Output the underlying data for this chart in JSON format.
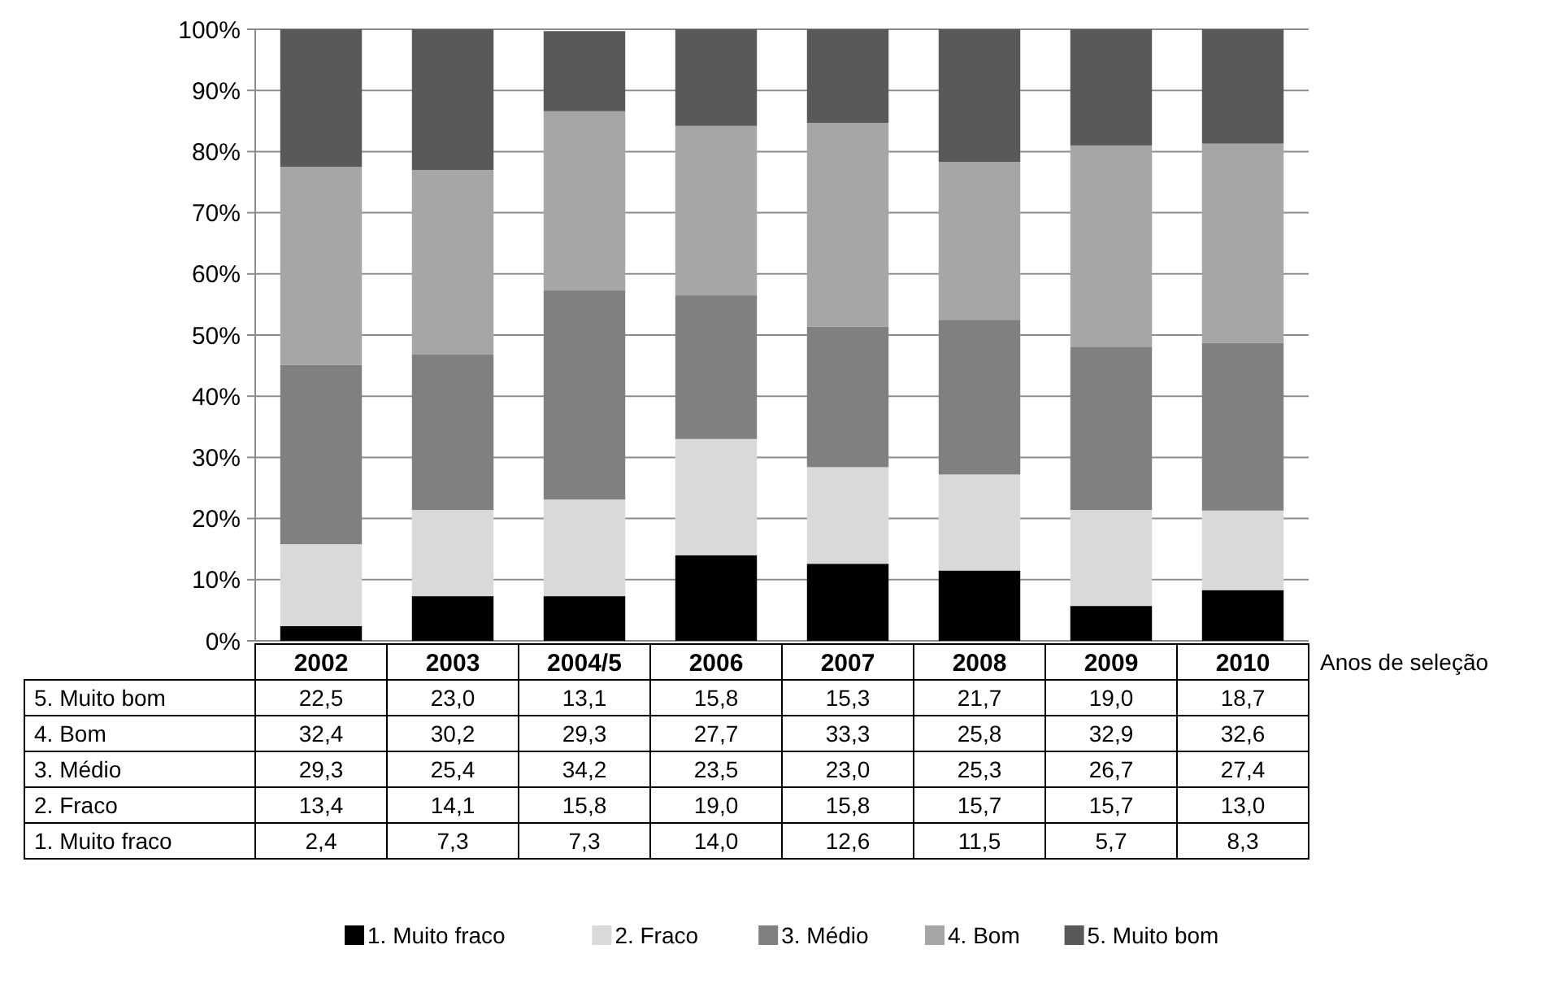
{
  "chart_data": {
    "type": "bar",
    "stacked": true,
    "xlabel": "Anos de seleção",
    "categories": [
      "2002",
      "2003",
      "2004/5",
      "2006",
      "2007",
      "2008",
      "2009",
      "2010"
    ],
    "series": [
      {
        "name": "1. Muito fraco",
        "color": "#000000",
        "values": [
          2.4,
          7.3,
          7.3,
          14.0,
          12.6,
          11.5,
          5.7,
          8.3
        ],
        "value_labels": [
          "2,4",
          "7,3",
          "7,3",
          "14,0",
          "12,6",
          "11,5",
          "5,7",
          "8,3"
        ]
      },
      {
        "name": "2. Fraco",
        "color": "#d9d9d9",
        "values": [
          13.4,
          14.1,
          15.8,
          19.0,
          15.8,
          15.7,
          15.7,
          13.0
        ],
        "value_labels": [
          "13,4",
          "14,1",
          "15,8",
          "19,0",
          "15,8",
          "15,7",
          "15,7",
          "13,0"
        ]
      },
      {
        "name": "3. Médio",
        "color": "#808080",
        "values": [
          29.3,
          25.4,
          34.2,
          23.5,
          23.0,
          25.3,
          26.7,
          27.4
        ],
        "value_labels": [
          "29,3",
          "25,4",
          "34,2",
          "23,5",
          "23,0",
          "25,3",
          "26,7",
          "27,4"
        ]
      },
      {
        "name": "4. Bom",
        "color": "#a6a6a6",
        "values": [
          32.4,
          30.2,
          29.3,
          27.7,
          33.3,
          25.8,
          32.9,
          32.6
        ],
        "value_labels": [
          "32,4",
          "30,2",
          "29,3",
          "27,7",
          "33,3",
          "25,8",
          "32,9",
          "32,6"
        ]
      },
      {
        "name": "5. Muito bom",
        "color": "#595959",
        "values": [
          22.5,
          23.0,
          13.1,
          15.8,
          15.3,
          21.7,
          19.0,
          18.7
        ],
        "value_labels": [
          "22,5",
          "23,0",
          "13,1",
          "15,8",
          "15,3",
          "21,7",
          "19,0",
          "18,7"
        ]
      }
    ],
    "ylim": [
      0,
      100
    ],
    "yticks": [
      {
        "value": 0,
        "label": "0%"
      },
      {
        "value": 10,
        "label": "10%"
      },
      {
        "value": 20,
        "label": "20%"
      },
      {
        "value": 30,
        "label": "30%"
      },
      {
        "value": 40,
        "label": "40%"
      },
      {
        "value": 50,
        "label": "50%"
      },
      {
        "value": 60,
        "label": "60%"
      },
      {
        "value": 70,
        "label": "70%"
      },
      {
        "value": 80,
        "label": "80%"
      },
      {
        "value": 90,
        "label": "90%"
      },
      {
        "value": 100,
        "label": "100%"
      }
    ],
    "grid": "y",
    "legend": "bottom"
  }
}
